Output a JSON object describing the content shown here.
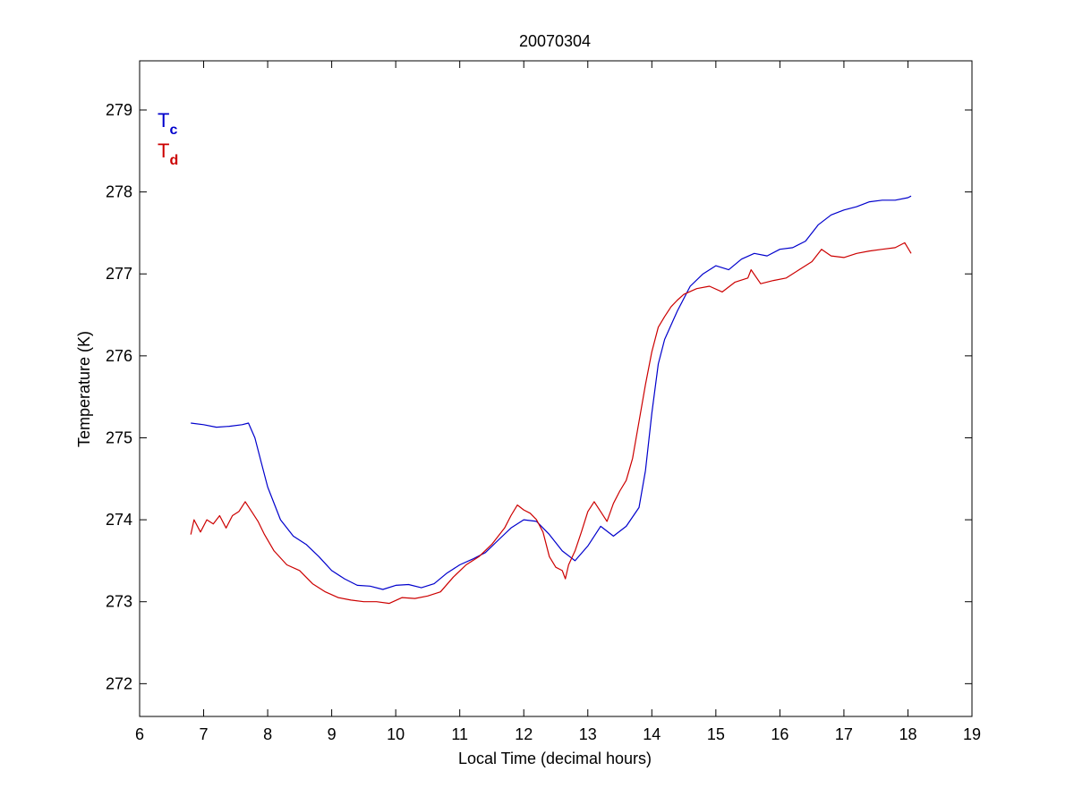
{
  "chart_data": {
    "type": "line",
    "title": "20070304",
    "xlabel": "Local Time (decimal hours)",
    "ylabel": "Temperature (K)",
    "xlim": [
      6,
      19
    ],
    "ylim": [
      271.6,
      279.6
    ],
    "xticks": [
      6,
      7,
      8,
      9,
      10,
      11,
      12,
      13,
      14,
      15,
      16,
      17,
      18,
      19
    ],
    "yticks": [
      272,
      273,
      274,
      275,
      276,
      277,
      278,
      279
    ],
    "grid": false,
    "legend_position": "top-left",
    "series": [
      {
        "name": "Tc",
        "name_base": "T",
        "name_sub": "c",
        "color": "#0000cc",
        "x": [
          6.8,
          7.0,
          7.2,
          7.4,
          7.6,
          7.7,
          7.8,
          7.9,
          8.0,
          8.2,
          8.4,
          8.6,
          8.8,
          9.0,
          9.2,
          9.4,
          9.6,
          9.8,
          10.0,
          10.2,
          10.4,
          10.6,
          10.8,
          11.0,
          11.2,
          11.4,
          11.6,
          11.8,
          12.0,
          12.2,
          12.4,
          12.6,
          12.8,
          13.0,
          13.2,
          13.4,
          13.6,
          13.8,
          13.9,
          14.0,
          14.1,
          14.2,
          14.4,
          14.6,
          14.8,
          15.0,
          15.2,
          15.4,
          15.6,
          15.8,
          16.0,
          16.2,
          16.4,
          16.6,
          16.8,
          17.0,
          17.2,
          17.4,
          17.6,
          17.8,
          18.0,
          18.05
        ],
        "y": [
          275.18,
          275.16,
          275.13,
          275.14,
          275.16,
          275.18,
          275.0,
          274.7,
          274.4,
          274.0,
          273.8,
          273.7,
          273.55,
          273.38,
          273.28,
          273.2,
          273.19,
          273.15,
          273.2,
          273.21,
          273.17,
          273.22,
          273.35,
          273.45,
          273.52,
          273.6,
          273.75,
          273.9,
          274.0,
          273.98,
          273.82,
          273.62,
          273.5,
          273.68,
          273.92,
          273.8,
          273.92,
          274.15,
          274.6,
          275.3,
          275.9,
          276.2,
          276.55,
          276.85,
          277.0,
          277.1,
          277.05,
          277.18,
          277.25,
          277.22,
          277.3,
          277.32,
          277.4,
          277.6,
          277.72,
          277.78,
          277.82,
          277.88,
          277.9,
          277.9,
          277.93,
          277.95
        ]
      },
      {
        "name": "Td",
        "name_base": "T",
        "name_sub": "d",
        "color": "#cc0000",
        "x": [
          6.8,
          6.85,
          6.95,
          7.05,
          7.15,
          7.25,
          7.35,
          7.45,
          7.55,
          7.65,
          7.75,
          7.85,
          7.95,
          8.1,
          8.3,
          8.5,
          8.7,
          8.9,
          9.1,
          9.3,
          9.5,
          9.7,
          9.9,
          10.1,
          10.3,
          10.5,
          10.7,
          10.9,
          11.1,
          11.3,
          11.5,
          11.7,
          11.8,
          11.9,
          12.0,
          12.1,
          12.2,
          12.3,
          12.4,
          12.5,
          12.6,
          12.65,
          12.7,
          12.8,
          12.9,
          13.0,
          13.1,
          13.2,
          13.3,
          13.4,
          13.5,
          13.6,
          13.7,
          13.8,
          13.9,
          14.0,
          14.1,
          14.2,
          14.3,
          14.4,
          14.5,
          14.7,
          14.9,
          15.1,
          15.3,
          15.5,
          15.55,
          15.7,
          15.9,
          16.1,
          16.3,
          16.5,
          16.65,
          16.8,
          17.0,
          17.2,
          17.4,
          17.6,
          17.8,
          17.95,
          18.05
        ],
        "y": [
          273.82,
          274.0,
          273.85,
          274.0,
          273.95,
          274.05,
          273.9,
          274.05,
          274.1,
          274.22,
          274.1,
          273.98,
          273.82,
          273.62,
          273.45,
          273.38,
          273.22,
          273.12,
          273.05,
          273.02,
          273.0,
          273.0,
          272.98,
          273.05,
          273.04,
          273.07,
          273.12,
          273.3,
          273.45,
          273.55,
          273.7,
          273.9,
          274.05,
          274.18,
          274.12,
          274.08,
          274.0,
          273.85,
          273.55,
          273.42,
          273.38,
          273.28,
          273.45,
          273.62,
          273.85,
          274.1,
          274.22,
          274.1,
          273.98,
          274.2,
          274.35,
          274.48,
          274.75,
          275.2,
          275.65,
          276.05,
          276.35,
          276.48,
          276.6,
          276.68,
          276.75,
          276.82,
          276.85,
          276.78,
          276.9,
          276.95,
          277.05,
          276.88,
          276.92,
          276.95,
          277.05,
          277.15,
          277.3,
          277.22,
          277.2,
          277.25,
          277.28,
          277.3,
          277.32,
          277.38,
          277.25
        ]
      }
    ]
  }
}
